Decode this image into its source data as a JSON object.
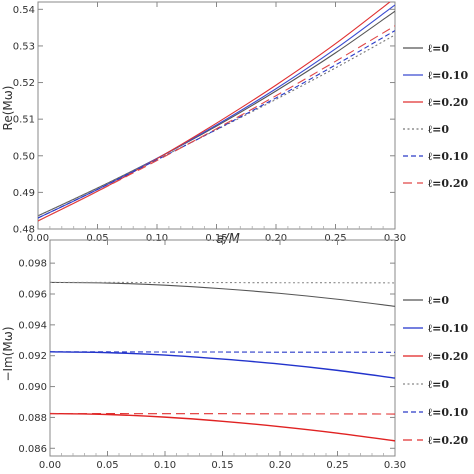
{
  "chart_data": [
    {
      "type": "line",
      "title": "",
      "xlabel": "a/M",
      "ylabel": "Re(Mω)",
      "xlim": [
        0.0,
        0.3
      ],
      "ylim": [
        0.48,
        0.542
      ],
      "xticks": [
        0.0,
        0.05,
        0.1,
        0.15,
        0.2,
        0.25,
        0.3
      ],
      "xtick_labels": [
        "0.00",
        "0.05",
        "0.10",
        "0.15",
        "0.20",
        "0.25",
        "0.30"
      ],
      "yticks": [
        0.48,
        0.49,
        0.5,
        0.51,
        0.52,
        0.53,
        0.54
      ],
      "ytick_labels": [
        "0.48",
        "0.49",
        "0.50",
        "0.51",
        "0.52",
        "0.53",
        "0.54"
      ],
      "grid": false,
      "legend_position": "right",
      "x": [
        0.0,
        0.05,
        0.1,
        0.15,
        0.2,
        0.25,
        0.3
      ],
      "series": [
        {
          "name": "ℓ=0",
          "color": "#555555",
          "dash": "solid",
          "values": [
            0.4836,
            0.4912,
            0.4993,
            0.5081,
            0.5177,
            0.5281,
            0.5395
          ]
        },
        {
          "name": "ℓ=0.10",
          "color": "#3a4bd1",
          "dash": "solid",
          "values": [
            0.483,
            0.4908,
            0.4993,
            0.5084,
            0.5183,
            0.5292,
            0.5412
          ]
        },
        {
          "name": "ℓ=0.20",
          "color": "#e03030",
          "dash": "solid",
          "values": [
            0.4822,
            0.4903,
            0.4992,
            0.5089,
            0.5193,
            0.5306,
            0.5431
          ]
        },
        {
          "name": "ℓ=0",
          "color": "#777777",
          "dash": "dotted",
          "values": [
            0.4836,
            0.4912,
            0.499,
            0.5071,
            0.5154,
            0.524,
            0.533
          ]
        },
        {
          "name": "ℓ=0.10",
          "color": "#2a3bc8",
          "dash": "dashed",
          "values": [
            0.483,
            0.4908,
            0.4989,
            0.5072,
            0.5158,
            0.5248,
            0.5342
          ]
        },
        {
          "name": "ℓ=0.20",
          "color": "#e04848",
          "dash": "longdash",
          "values": [
            0.4822,
            0.4903,
            0.4987,
            0.5074,
            0.5164,
            0.5258,
            0.5355
          ]
        }
      ]
    },
    {
      "type": "line",
      "title": "",
      "xlabel": "",
      "ylabel": "−Im(Mω)",
      "xlim": [
        0.0,
        0.3
      ],
      "ylim": [
        0.0855,
        0.0995
      ],
      "xticks": [
        0.0,
        0.05,
        0.1,
        0.15,
        0.2,
        0.25,
        0.3
      ],
      "xtick_labels": [
        "0.00",
        "0.05",
        "0.10",
        "0.15",
        "0.20",
        "0.25",
        "0.30"
      ],
      "yticks": [
        0.086,
        0.088,
        0.09,
        0.092,
        0.094,
        0.096,
        0.098
      ],
      "ytick_labels": [
        "0.086",
        "0.088",
        "0.090",
        "0.092",
        "0.094",
        "0.096",
        "0.098"
      ],
      "grid": false,
      "legend_position": "right",
      "x": [
        0.0,
        0.05,
        0.1,
        0.15,
        0.2,
        0.25,
        0.3
      ],
      "series": [
        {
          "name": "ℓ=0",
          "color": "#555555",
          "dash": "solid",
          "values": [
            0.09675,
            0.09671,
            0.09657,
            0.09634,
            0.09604,
            0.09566,
            0.0952
          ]
        },
        {
          "name": "ℓ=0.10",
          "color": "#2233cc",
          "dash": "solid",
          "values": [
            0.09225,
            0.0922,
            0.09204,
            0.09178,
            0.09146,
            0.09105,
            0.09055
          ]
        },
        {
          "name": "ℓ=0.20",
          "color": "#e02222",
          "dash": "solid",
          "values": [
            0.08825,
            0.08819,
            0.08802,
            0.08775,
            0.0874,
            0.08698,
            0.08648
          ]
        },
        {
          "name": "ℓ=0",
          "color": "#888888",
          "dash": "dotted",
          "values": [
            0.09675,
            0.09675,
            0.09674,
            0.09674,
            0.09673,
            0.09673,
            0.09672
          ]
        },
        {
          "name": "ℓ=0.10",
          "color": "#2a3bc8",
          "dash": "dashed",
          "values": [
            0.09225,
            0.09225,
            0.09224,
            0.09224,
            0.09223,
            0.09223,
            0.09222
          ]
        },
        {
          "name": "ℓ=0.20",
          "color": "#e03030",
          "dash": "longdash",
          "values": [
            0.08825,
            0.08825,
            0.08824,
            0.08824,
            0.08823,
            0.08823,
            0.08822
          ]
        }
      ]
    }
  ]
}
